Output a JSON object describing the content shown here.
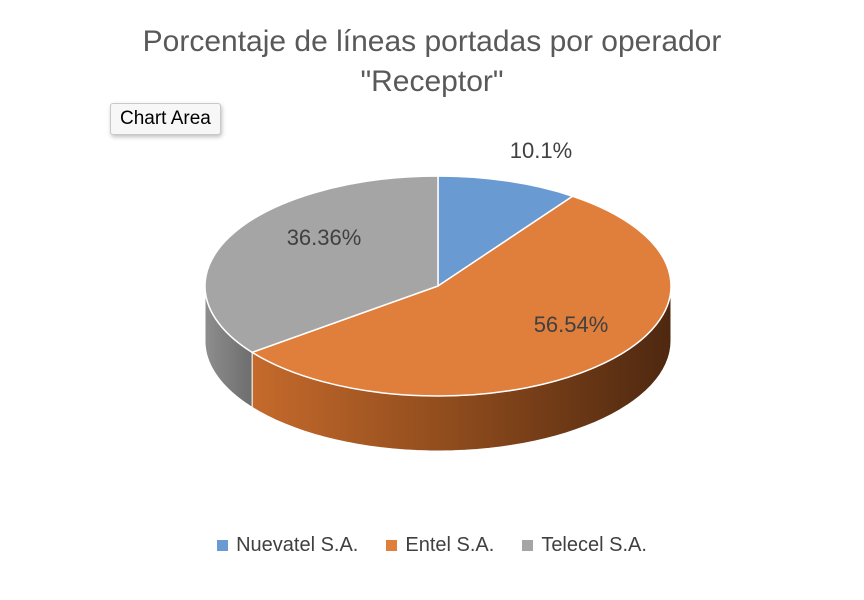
{
  "tooltip": "Chart Area",
  "chart_data": {
    "type": "pie",
    "title_lines": [
      "Porcentaje de líneas portadas por operador",
      "\"Receptor\""
    ],
    "categories": [
      "Nuevatel S.A.",
      "Entel S.A.",
      "Telecel S.A."
    ],
    "values": [
      10.1,
      56.54,
      36.36
    ],
    "labels": [
      "10.1%",
      "56.54%",
      "36.36%"
    ],
    "colors": [
      "#6a9ad2",
      "#e07f3c",
      "#a5a5a5"
    ],
    "legend_position": "bottom",
    "style": "3d"
  }
}
